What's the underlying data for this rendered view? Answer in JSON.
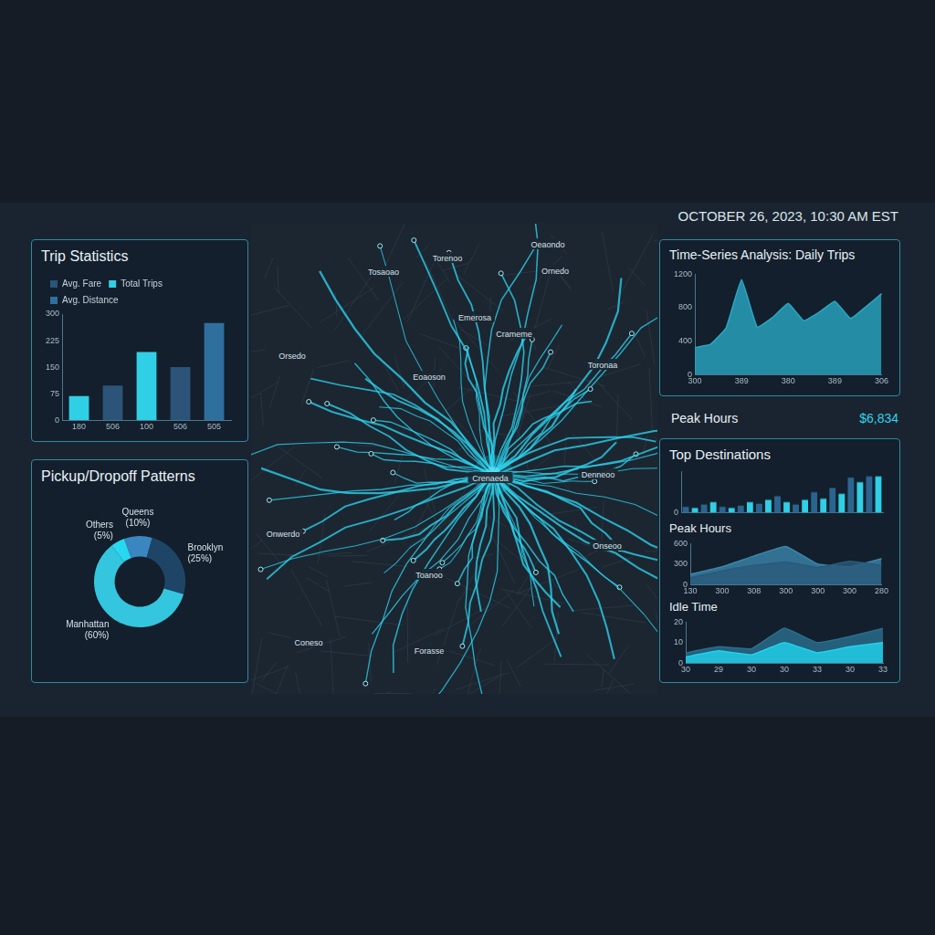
{
  "header": {
    "timestamp": "OCTOBER 26, 2023, 10:30 AM EST"
  },
  "callout": {
    "label": "Peak Hours",
    "value": "$6,834"
  },
  "map": {
    "labels": [
      "Oeaondo",
      "Torenoo",
      "Ornedo",
      "Tosaoao",
      "Emerosa",
      "Crameme",
      "Crenaeda",
      "Orsedo",
      "Eoaoson",
      "Toronaa",
      "Onwerdo",
      "Denneoo",
      "Toanoo",
      "Coneso",
      "Forasse",
      "Onseoo"
    ]
  },
  "chart_data": [
    {
      "type": "bar",
      "title": "Trip Statistics",
      "categories": [
        "180",
        "506",
        "100",
        "506",
        "505"
      ],
      "series": [
        {
          "name": "Avg. Fare",
          "color": "#2b5478",
          "values": [
            null,
            98,
            null,
            150,
            null
          ]
        },
        {
          "name": "Total Trips",
          "color": "#2fcfe6",
          "values": [
            68,
            null,
            193,
            null,
            null
          ]
        },
        {
          "name": "Avg. Distance",
          "color": "#2f6f9e",
          "values": [
            null,
            null,
            null,
            null,
            275
          ]
        }
      ],
      "ylim": [
        0,
        300
      ],
      "yticks": [
        0,
        75,
        150,
        225,
        300
      ],
      "grid": false,
      "legend": "top-left"
    },
    {
      "type": "doughnut",
      "title": "Pickup/Dropoff Patterns",
      "categories": [
        "Queens",
        "Brooklyn",
        "Manhattan",
        "Others"
      ],
      "values": [
        10,
        25,
        60,
        5
      ],
      "value_labels": [
        "(10%)",
        "(25%)",
        "(60%)",
        "(5%)"
      ],
      "colors": [
        "#3a86c0",
        "#1e4566",
        "#34c6de",
        "#27d8f0"
      ],
      "data_labels": true
    },
    {
      "type": "area",
      "title": "Time-Series Analysis: Daily Trips",
      "categories": [
        "300",
        null,
        null,
        "389",
        null,
        null,
        "380",
        null,
        null,
        "389",
        null,
        null,
        "306"
      ],
      "values": [
        323,
        361,
        555,
        1135,
        568,
        684,
        852,
        645,
        748,
        877,
        671,
        813,
        968
      ],
      "color": "#2aa7c4",
      "ylim": [
        0,
        1200
      ],
      "yticks": [
        0,
        400,
        800,
        1200
      ],
      "grid": false
    },
    {
      "type": "bar",
      "title": "Top Destinations",
      "categories": [
        null,
        null,
        null,
        null,
        null,
        null,
        null,
        null,
        null,
        null,
        null,
        null,
        null,
        null,
        null,
        null,
        null,
        null,
        null,
        null,
        null,
        null
      ],
      "values": [
        10,
        8,
        14,
        18,
        10,
        8,
        12,
        18,
        15,
        22,
        28,
        18,
        14,
        22,
        35,
        24,
        42,
        32,
        60,
        52,
        62,
        62
      ],
      "colors": [
        "#2a6590",
        "#2fcfe6",
        "#2a6590",
        "#2fcfe6",
        "#2a6590",
        "#2fcfe6",
        "#2a6590",
        "#2fcfe6",
        "#2a6590",
        "#2fcfe6",
        "#2a6590",
        "#2fcfe6",
        "#2a6590",
        "#2fcfe6",
        "#2a6590",
        "#2fcfe6",
        "#2a6590",
        "#2fcfe6",
        "#2a6590",
        "#2fcfe6",
        "#2a6590",
        "#2fcfe6"
      ],
      "ylim": [
        0,
        70
      ],
      "yticks": [
        0
      ],
      "grid": false,
      "tick_labels": "y"
    },
    {
      "type": "area",
      "title": "Peak Hours",
      "categories": [
        "130",
        "300",
        "308",
        "300",
        "300",
        "300",
        "280"
      ],
      "series": [
        {
          "color": "#3b86ad",
          "values": [
            150,
            260,
            420,
            560,
            300,
            260,
            380
          ]
        },
        {
          "color": "#2a5a7a",
          "values": [
            100,
            200,
            280,
            330,
            250,
            340,
            280
          ]
        }
      ],
      "ylim": [
        0,
        600
      ],
      "yticks": [
        0,
        300,
        600
      ],
      "grid": false
    },
    {
      "type": "area",
      "title": "Idle Time",
      "categories": [
        "30",
        "29",
        "30",
        "30",
        "33",
        "30",
        "33"
      ],
      "series": [
        {
          "color": "#2a6f90",
          "values": [
            5,
            8,
            7,
            17,
            10,
            13,
            17
          ]
        },
        {
          "color": "#22d3ee",
          "values": [
            3,
            6,
            4,
            10,
            5,
            8,
            10
          ]
        }
      ],
      "ylim": [
        0,
        20
      ],
      "yticks": [
        0,
        10,
        20
      ],
      "grid": false
    }
  ]
}
